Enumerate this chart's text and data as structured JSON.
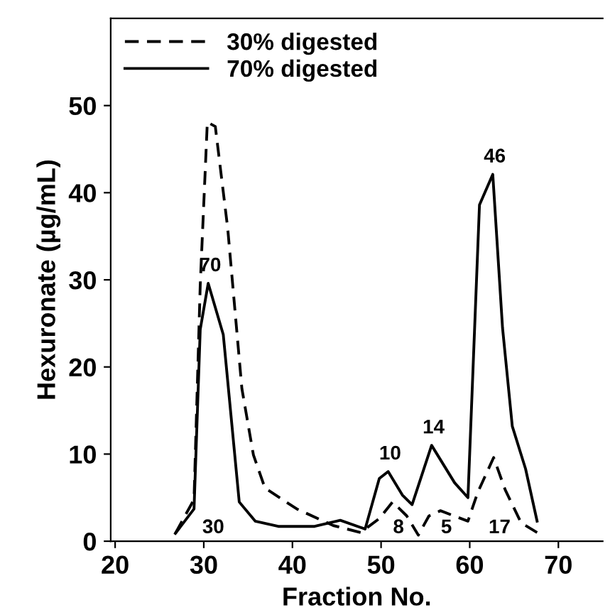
{
  "chart_data": {
    "type": "line",
    "xlabel": "Fraction No.",
    "ylabel": "Hexuronate (µg/mL)",
    "xlim": [
      19.5,
      75
    ],
    "ylim": [
      0,
      60
    ],
    "xticks": [
      20,
      30,
      40,
      50,
      60,
      70
    ],
    "yticks": [
      0,
      10,
      20,
      30,
      40,
      50
    ],
    "grid": false,
    "legend": "top left",
    "marker": "none",
    "series": [
      {
        "name": "30% digested",
        "color": "#000000",
        "line_style": "dashed",
        "x": [
          26.8,
          28.9,
          29.6,
          30.4,
          31.3,
          32.7,
          34.3,
          35.6,
          36.9,
          40.5,
          44.6,
          47.7,
          49.8,
          51.3,
          52.9,
          54.2,
          55.4,
          56.7,
          59.8,
          60.9,
          62.7,
          64.0,
          65.8,
          67.6
        ],
        "values": [
          0.9,
          4.8,
          29.4,
          48.1,
          47.6,
          35.9,
          17.5,
          9.9,
          6.1,
          3.7,
          1.8,
          1.0,
          2.6,
          4.5,
          2.9,
          0.7,
          2.9,
          3.5,
          2.3,
          5.6,
          9.6,
          5.9,
          2.1,
          1.0
        ]
      },
      {
        "name": "70% digested",
        "color": "#000000",
        "line_style": "solid",
        "x": [
          26.8,
          28.9,
          29.6,
          30.5,
          32.2,
          34.0,
          35.8,
          38.4,
          42.5,
          45.4,
          48.2,
          49.8,
          50.8,
          52.4,
          53.5,
          55.7,
          58.3,
          59.8,
          61.1,
          62.6,
          63.7,
          64.8,
          66.3,
          67.6
        ],
        "values": [
          0.9,
          3.7,
          24.3,
          29.6,
          23.7,
          4.5,
          2.3,
          1.7,
          1.7,
          2.4,
          1.4,
          7.2,
          8.0,
          5.3,
          4.2,
          11.0,
          6.7,
          5.0,
          38.6,
          42.1,
          24.5,
          13.2,
          8.3,
          2.3
        ]
      }
    ],
    "annotations": [
      "30",
      "8",
      "5",
      "17",
      "70",
      "10",
      "14",
      "46"
    ]
  }
}
